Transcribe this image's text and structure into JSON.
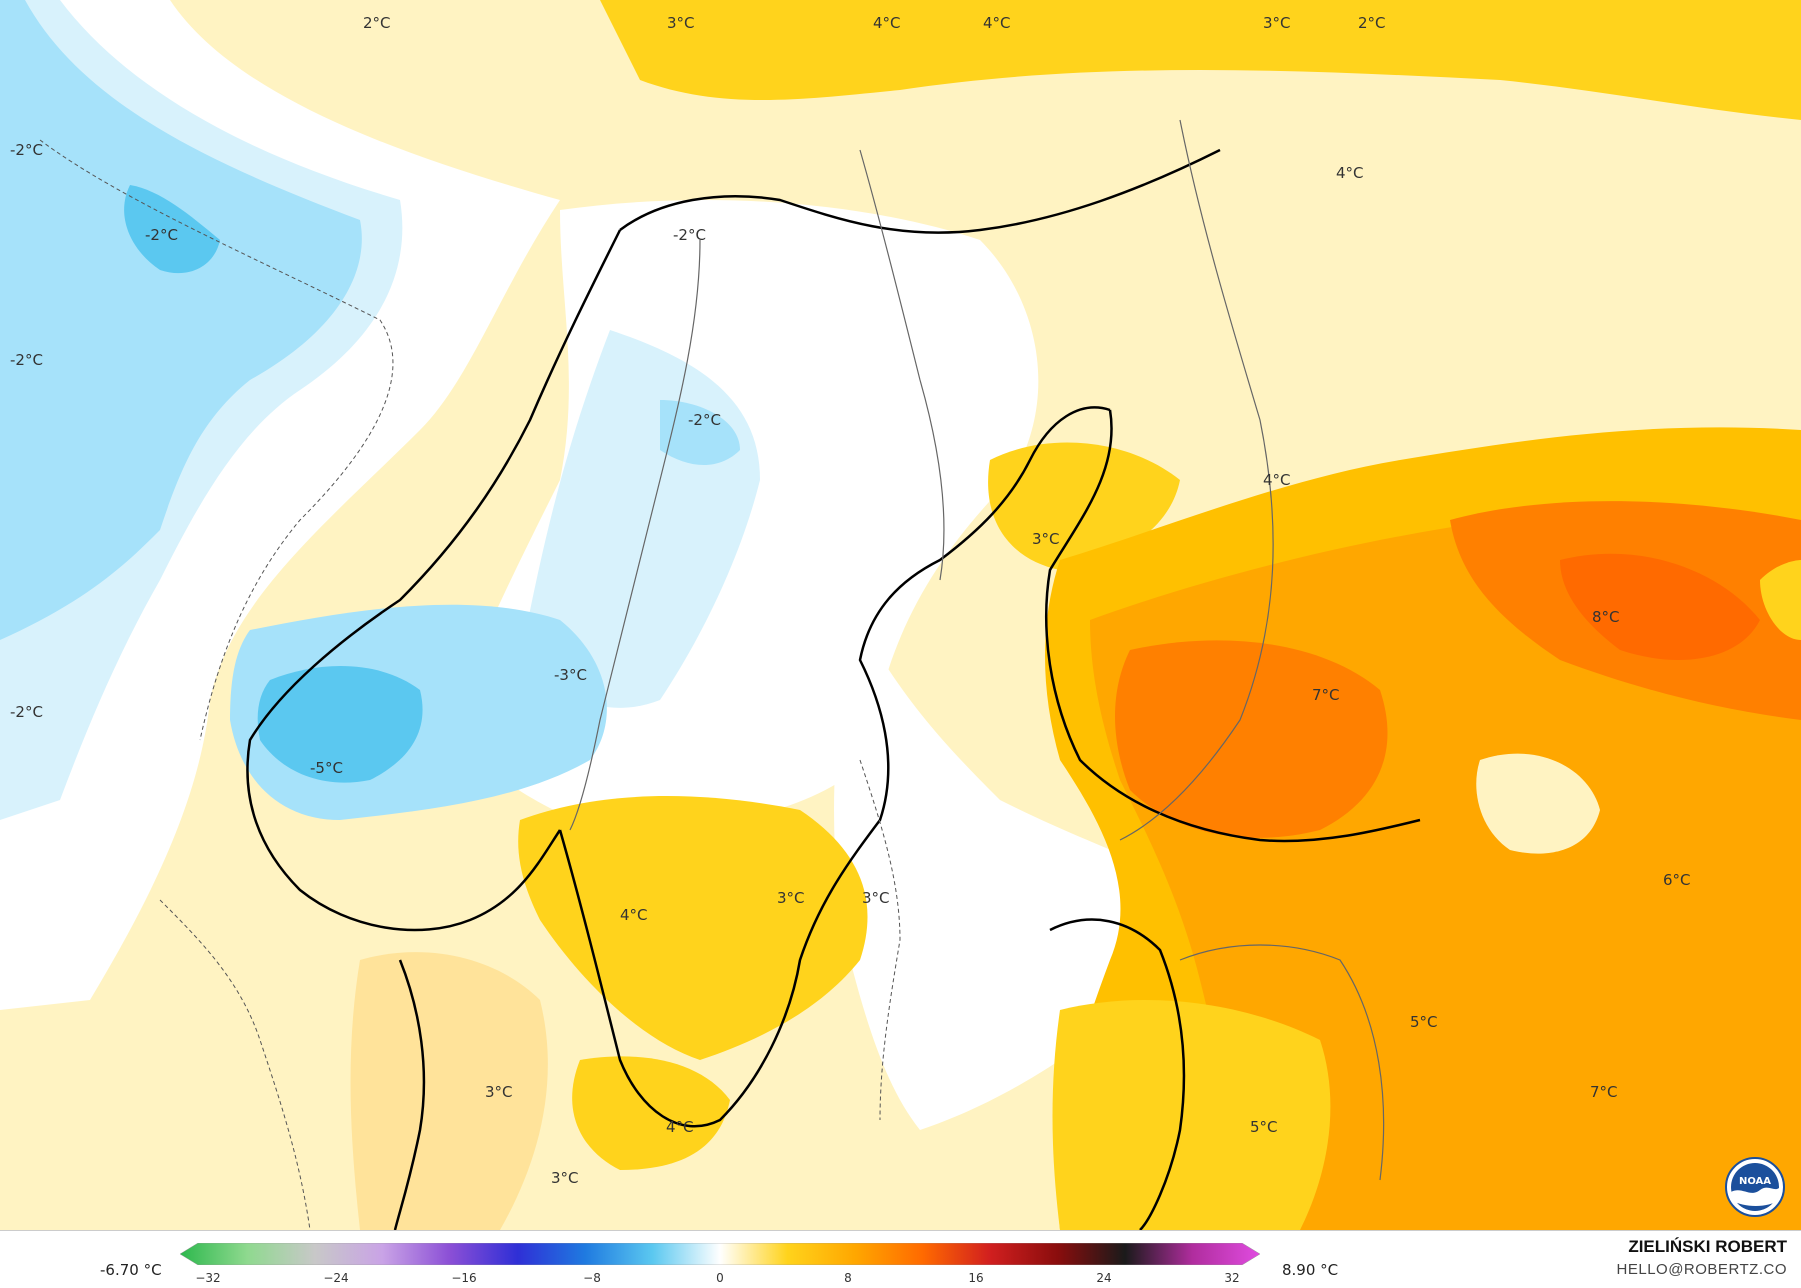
{
  "map": {
    "contour_labels": [
      {
        "id": "north-1",
        "text": "2°C"
      },
      {
        "id": "north-2",
        "text": "3°C"
      },
      {
        "id": "north-3",
        "text": "4°C"
      },
      {
        "id": "north-4",
        "text": "4°C"
      },
      {
        "id": "north-5",
        "text": "3°C"
      },
      {
        "id": "north-6",
        "text": "2°C"
      },
      {
        "id": "west-1",
        "text": "-2°C"
      },
      {
        "id": "west-2",
        "text": "-2°C"
      },
      {
        "id": "west-3",
        "text": "-2°C"
      },
      {
        "id": "west-4",
        "text": "-2°C"
      },
      {
        "id": "lofoten",
        "text": "-2°C"
      },
      {
        "id": "norway-mid",
        "text": "-2°C"
      },
      {
        "id": "norway-south",
        "text": "-3°C"
      },
      {
        "id": "norway-west",
        "text": "-5°C"
      },
      {
        "id": "finnmark",
        "text": "4°C"
      },
      {
        "id": "bothnia-north",
        "text": "3°C"
      },
      {
        "id": "finland-north",
        "text": "4°C"
      },
      {
        "id": "finland-south",
        "text": "7°C"
      },
      {
        "id": "russia-nw",
        "text": "8°C"
      },
      {
        "id": "russia-south",
        "text": "6°C"
      },
      {
        "id": "russia-mid",
        "text": "5°C"
      },
      {
        "id": "russia-sw",
        "text": "7°C"
      },
      {
        "id": "sweden-mid-1",
        "text": "4°C"
      },
      {
        "id": "sweden-mid-2",
        "text": "3°C"
      },
      {
        "id": "sweden-mid-3",
        "text": "3°C"
      },
      {
        "id": "denmark",
        "text": "3°C"
      },
      {
        "id": "sweden-south",
        "text": "4°C"
      },
      {
        "id": "jutland",
        "text": "3°C"
      },
      {
        "id": "baltics",
        "text": "5°C"
      }
    ],
    "colors": {
      "very_cold": "#5bc8f0",
      "cold": "#a6e2fa",
      "cool": "#d8f2fc",
      "neutral": "#ffffff",
      "pale_warm": "#fff3c2",
      "light_warm": "#ffe39a",
      "warm": "#ffd31c",
      "warmer": "#ffc000",
      "orange": "#ffa700",
      "deep_orange": "#ff8000",
      "hot": "#ff6a00",
      "coastline": "#000000",
      "border": "#666666"
    }
  },
  "legend": {
    "min_label": "-6.70 °C",
    "max_label": "8.90 °C",
    "ticks": [
      "−32",
      "−24",
      "−16",
      "−8",
      "0",
      "8",
      "16",
      "24",
      "32"
    ],
    "colorscale": [
      "#2db84d",
      "#8fd98f",
      "#c8c8c8",
      "#c9a3e6",
      "#8b4fd6",
      "#2f2fd6",
      "#1f7ae0",
      "#5bc8f0",
      "#ffffff",
      "#ffd31c",
      "#ffa700",
      "#ff6a00",
      "#d11f1f",
      "#8a0d0d",
      "#1a1a1a",
      "#b02d9e",
      "#e04ce0"
    ]
  },
  "credit": {
    "name": "ZIELIŃSKI ROBERT",
    "email": "HELLO@ROBERTZ.CO"
  },
  "logo": {
    "text": "NOAA"
  }
}
